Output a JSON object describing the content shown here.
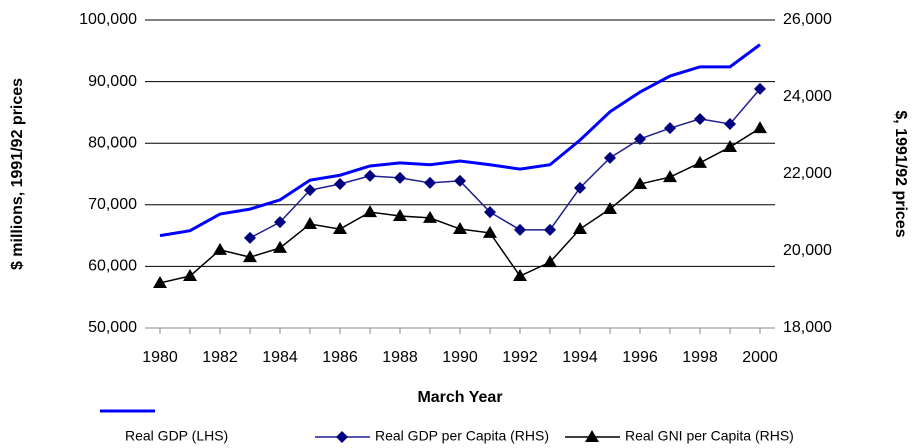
{
  "chart_data": {
    "type": "line",
    "x_label": "March Year",
    "y_label": "$ millions, 1991/92 prices",
    "y2_label": "$, 1991/92 prices",
    "x": [
      1980,
      1981,
      1982,
      1983,
      1984,
      1985,
      1986,
      1987,
      1988,
      1989,
      1990,
      1991,
      1992,
      1993,
      1994,
      1995,
      1996,
      1997,
      1998,
      1999,
      2000
    ],
    "xlim": [
      1979.5,
      2000.5
    ],
    "xticks": [
      1980,
      1982,
      1984,
      1986,
      1988,
      1990,
      1992,
      1994,
      1996,
      1998,
      2000
    ],
    "ylim": [
      50000,
      100000
    ],
    "yticks": [
      {
        "value": 50000,
        "label": "50,000"
      },
      {
        "value": 60000,
        "label": "60,000"
      },
      {
        "value": 70000,
        "label": "70,000"
      },
      {
        "value": 80000,
        "label": "80,000"
      },
      {
        "value": 90000,
        "label": "90,000"
      },
      {
        "value": 100000,
        "label": "100,000"
      }
    ],
    "y2lim": [
      18000,
      26000
    ],
    "y2ticks": [
      {
        "value": 18000,
        "label": "18,000"
      },
      {
        "value": 20000,
        "label": "20,000"
      },
      {
        "value": 22000,
        "label": "22,000"
      },
      {
        "value": 24000,
        "label": "24,000"
      },
      {
        "value": 26000,
        "label": "26,000"
      }
    ],
    "grid": true,
    "legend": "bottom",
    "series": [
      {
        "name": "Real GDP (LHS)",
        "color": "#0000ff",
        "marker": "none",
        "values": [
          65000,
          65800,
          68500,
          69300,
          70800,
          74000,
          74800,
          76300,
          76800,
          76500,
          77100,
          76500,
          75800,
          76500,
          80500,
          85100,
          88300,
          90900,
          92400,
          92400,
          96000
        ]
      },
      {
        "name": "Real GDP per Capita (RHS)",
        "color": "#1f1f8f",
        "marker": "diamond",
        "axis": "y2",
        "values": [
          null,
          null,
          null,
          20340,
          20750,
          21580,
          21740,
          21950,
          21900,
          21770,
          21820,
          21010,
          20550,
          20550,
          21640,
          22420,
          22910,
          23190,
          23430,
          23300,
          24210
        ]
      },
      {
        "name": "Real GNI per Capita (RHS)",
        "color": "#000000",
        "marker": "triangle",
        "axis": "y2",
        "values": [
          19170,
          19350,
          20030,
          19840,
          20080,
          20700,
          20570,
          21010,
          20910,
          20860,
          20570,
          20470,
          19350,
          19710,
          20570,
          21090,
          21740,
          21920,
          22290,
          22700,
          23190
        ]
      }
    ]
  }
}
